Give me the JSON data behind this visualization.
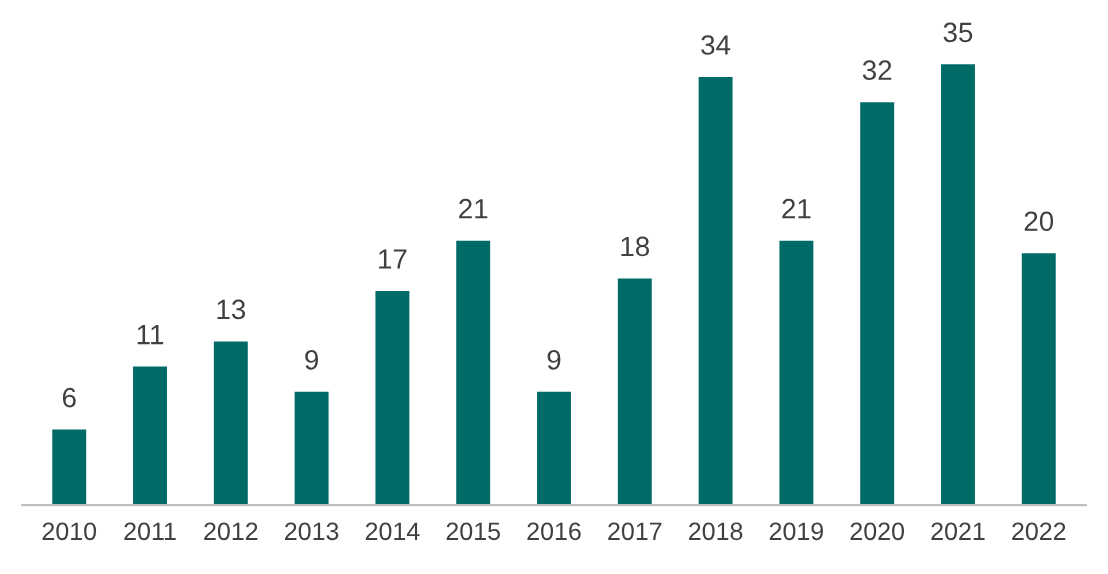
{
  "chart_data": {
    "type": "bar",
    "categories": [
      "2010",
      "2011",
      "2012",
      "2013",
      "2014",
      "2015",
      "2016",
      "2017",
      "2018",
      "2019",
      "2020",
      "2021",
      "2022"
    ],
    "values": [
      6,
      11,
      13,
      9,
      17,
      21,
      9,
      18,
      34,
      21,
      32,
      35,
      20
    ],
    "color": "#006b66",
    "data_labels": true,
    "grid": false,
    "legend": false
  }
}
